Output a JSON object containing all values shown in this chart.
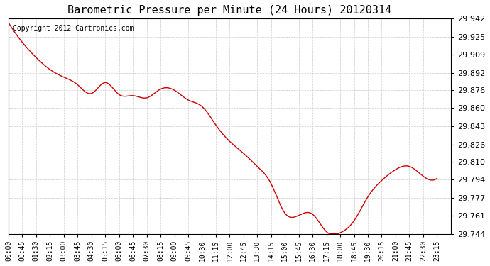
{
  "title": "Barometric Pressure per Minute (24 Hours) 20120314",
  "copyright": "Copyright 2012 Cartronics.com",
  "line_color": "#cc0000",
  "background_color": "#ffffff",
  "plot_bg_color": "#ffffff",
  "grid_color": "#cccccc",
  "ylim": [
    29.744,
    29.942
  ],
  "yticks": [
    29.744,
    29.761,
    29.777,
    29.794,
    29.81,
    29.826,
    29.843,
    29.86,
    29.876,
    29.892,
    29.909,
    29.925,
    29.942
  ],
  "xtick_labels": [
    "00:00",
    "00:45",
    "01:30",
    "02:15",
    "03:00",
    "03:45",
    "04:30",
    "05:15",
    "06:00",
    "06:45",
    "07:30",
    "08:15",
    "09:00",
    "09:45",
    "10:30",
    "11:15",
    "12:00",
    "12:45",
    "13:30",
    "14:15",
    "15:00",
    "15:45",
    "16:30",
    "17:15",
    "18:00",
    "18:45",
    "19:30",
    "20:15",
    "21:00",
    "21:45",
    "22:30",
    "23:15"
  ],
  "key_points_x": [
    0,
    45,
    90,
    135,
    180,
    225,
    270,
    315,
    360,
    405,
    450,
    495,
    540,
    585,
    630,
    675,
    720,
    765,
    810,
    855,
    900,
    945,
    990,
    1035,
    1080,
    1125,
    1170,
    1215,
    1260,
    1305,
    1350,
    1395
  ],
  "key_points_y": [
    29.938,
    29.92,
    29.906,
    29.895,
    29.888,
    29.881,
    29.873,
    29.883,
    29.872,
    29.871,
    29.869,
    29.877,
    29.876,
    29.867,
    29.861,
    29.844,
    29.829,
    29.818,
    29.806,
    29.79,
    29.763,
    29.761,
    29.762,
    29.746,
    29.745,
    29.756,
    29.778,
    29.793,
    29.803,
    29.806,
    29.797,
    29.795
  ]
}
